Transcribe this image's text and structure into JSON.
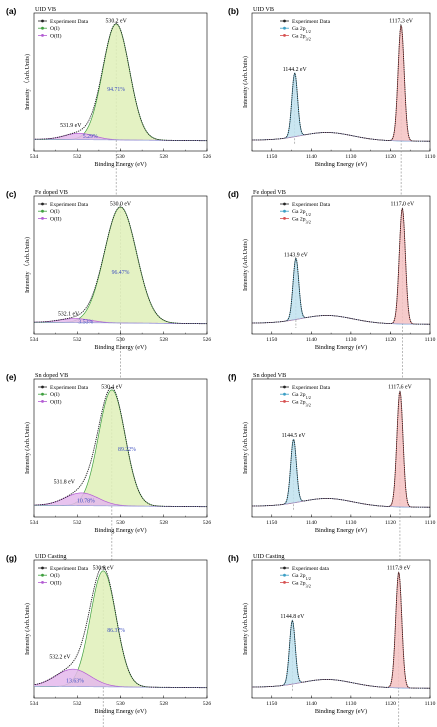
{
  "colors": {
    "data_line": "#222222",
    "o1_fill": "#dff0b8",
    "o1_line": "#3f9f3f",
    "o2_fill": "#e4b8ec",
    "o2_line": "#b35cd3",
    "ga_half_fill": "#bfe2ee",
    "ga_half_line": "#3c9fc5",
    "ga_32_fill": "#f5c2c2",
    "ga_32_line": "#d65050",
    "bg_line": "#8a9ad6",
    "pct_text": "#3b4dbf",
    "ref_line": "#8a8a8a"
  },
  "chart_data": [
    {
      "panel": "(a)",
      "type": "line",
      "region": "O 1s",
      "title": "UID VB",
      "xlabel": "Binding Energy (eV)",
      "ylabel": "Intensity （Arb.Units)",
      "xlim": [
        534,
        526
      ],
      "xticks": [
        "534",
        "532",
        "530",
        "528",
        "526"
      ],
      "legend": [
        "Experiment Data",
        "O(I)",
        "O(II)"
      ],
      "legend_position": "top-left",
      "peaks": [
        {
          "name": "O(I)",
          "center": 530.2,
          "height": 1.0,
          "fwhm": 1.45,
          "percent": "94.71%"
        },
        {
          "name": "O(II)",
          "center": 531.9,
          "height": 0.055,
          "fwhm": 1.6,
          "percent": "5.29%"
        }
      ],
      "annotations": [
        {
          "text": "530.2 eV",
          "x": 530.2,
          "y": 1.04
        },
        {
          "text": "531.9 eV",
          "x": 532.3,
          "y": 0.14
        },
        {
          "text": "94.71%",
          "x": 530.2,
          "y": 0.45,
          "style": "pct"
        },
        {
          "text": "5.29%",
          "x": 531.4,
          "y": 0.045,
          "style": "pct"
        }
      ]
    },
    {
      "panel": "(b)",
      "type": "line",
      "region": "Ga 2p",
      "title": "UID VB",
      "xlabel": "Binding Energy (eV)",
      "ylabel": "Intensity (Arb.Units)",
      "xlim": [
        1155,
        1110
      ],
      "xticks": [
        "1150",
        "1140",
        "1130",
        "1120",
        "1110"
      ],
      "legend": [
        "Experiment Data",
        "Ga 2p<sub>1/2</sub>",
        "Ga 2p<sub>3/2</sub>"
      ],
      "legend_position": "top-center",
      "peaks": [
        {
          "name": "Ga 2p1/2",
          "center": 1144.2,
          "height": 0.55,
          "fwhm": 1.7
        },
        {
          "name": "Ga 2p3/2",
          "center": 1117.3,
          "height": 1.0,
          "fwhm": 1.8
        }
      ],
      "annotations": [
        {
          "text": "1117.3 eV",
          "x": 1117.3,
          "y": 1.04
        },
        {
          "text": "1144.2 eV",
          "x": 1144.2,
          "y": 0.62
        }
      ]
    },
    {
      "panel": "(c)",
      "type": "line",
      "region": "O 1s",
      "title": "Fe doped VB",
      "xlabel": "Binding Energy (eV)",
      "ylabel": "Intensity （Arb.Units)",
      "xlim": [
        534,
        526
      ],
      "xticks": [
        "534",
        "532",
        "530",
        "528",
        "526"
      ],
      "legend": [
        "Experiment Data",
        "O(I)",
        "O(II)"
      ],
      "legend_position": "top-left",
      "peaks": [
        {
          "name": "O(I)",
          "center": 530.0,
          "height": 1.0,
          "fwhm": 1.75,
          "percent": "96.47%"
        },
        {
          "name": "O(II)",
          "center": 532.1,
          "height": 0.035,
          "fwhm": 1.7,
          "percent": "3.53%"
        }
      ],
      "annotations": [
        {
          "text": "530.0 eV",
          "x": 530.0,
          "y": 1.04
        },
        {
          "text": "532.1 eV",
          "x": 532.4,
          "y": 0.09
        },
        {
          "text": "96.47%",
          "x": 530.0,
          "y": 0.45,
          "style": "pct"
        },
        {
          "text": "3.53%",
          "x": 531.6,
          "y": 0.02,
          "style": "pct"
        }
      ]
    },
    {
      "panel": "(d)",
      "type": "line",
      "region": "Ga 2p",
      "title": "Fe doped VB",
      "xlabel": "Binding Energy (eV)",
      "ylabel": "Intensity (Arb.Units)",
      "xlim": [
        1155,
        1110
      ],
      "xticks": [
        "1150",
        "1140",
        "1130",
        "1120",
        "1110"
      ],
      "legend": [
        "Experiment Data",
        "Ga 2p<sub>1/2</sub>",
        "Ga 2p<sub>3/2</sub>"
      ],
      "legend_position": "top-center",
      "peaks": [
        {
          "name": "Ga 2p1/2",
          "center": 1143.9,
          "height": 0.53,
          "fwhm": 1.7
        },
        {
          "name": "Ga 2p3/2",
          "center": 1117.0,
          "height": 1.0,
          "fwhm": 1.8
        }
      ],
      "annotations": [
        {
          "text": "1117.0 eV",
          "x": 1117.0,
          "y": 1.04
        },
        {
          "text": "1143.9 eV",
          "x": 1143.9,
          "y": 0.6
        }
      ]
    },
    {
      "panel": "(e)",
      "type": "line",
      "region": "O 1s",
      "title": "Sn doped VB",
      "xlabel": "Binding Energy (eV)",
      "ylabel": "Intensity (Arb.Units)",
      "xlim": [
        534,
        526
      ],
      "xticks": [
        "534",
        "532",
        "530",
        "528",
        "526"
      ],
      "legend": [
        "Experiment Data",
        "O(I)",
        "O(II)"
      ],
      "legend_position": "top-left",
      "peaks": [
        {
          "name": "O(I)",
          "center": 530.4,
          "height": 1.0,
          "fwhm": 1.45,
          "percent": "89.22%"
        },
        {
          "name": "O(II)",
          "center": 531.8,
          "height": 0.11,
          "fwhm": 1.8,
          "percent": "10.78%"
        }
      ],
      "annotations": [
        {
          "text": "530.4 eV",
          "x": 530.4,
          "y": 1.04
        },
        {
          "text": "531.8 eV",
          "x": 532.6,
          "y": 0.22
        },
        {
          "text": "89.22%",
          "x": 529.7,
          "y": 0.5,
          "style": "pct"
        },
        {
          "text": "10.78%",
          "x": 531.6,
          "y": 0.055,
          "style": "pct"
        }
      ]
    },
    {
      "panel": "(f)",
      "type": "line",
      "region": "Ga 2p",
      "title": "Sn doped VB",
      "xlabel": "Binding Energy (eV)",
      "ylabel": "Intensity (Arb.Units)",
      "xlim": [
        1155,
        1110
      ],
      "xticks": [
        "1150",
        "1140",
        "1130",
        "1120",
        "1110"
      ],
      "legend": [
        "Experiment Data",
        "Ga 2p<sub>1/2</sub>",
        "Ga 2p<sub>3/2</sub>"
      ],
      "legend_position": "top-center",
      "peaks": [
        {
          "name": "Ga 2p1/2",
          "center": 1144.5,
          "height": 0.55,
          "fwhm": 1.7
        },
        {
          "name": "Ga 2p3/2",
          "center": 1117.6,
          "height": 1.0,
          "fwhm": 1.8
        }
      ],
      "annotations": [
        {
          "text": "1117.6 eV",
          "x": 1117.6,
          "y": 1.04
        },
        {
          "text": "1144.5 eV",
          "x": 1144.5,
          "y": 0.62
        }
      ]
    },
    {
      "panel": "(g)",
      "type": "line",
      "region": "O 1s",
      "title": "UID Casting",
      "xlabel": "Binding Energy (eV)",
      "ylabel": "Intensity (Arb.Units)",
      "xlim": [
        534,
        526
      ],
      "xticks": [
        "534",
        "532",
        "530",
        "528",
        "526"
      ],
      "legend": [
        "Experiment Data",
        "O(I)",
        "O(II)"
      ],
      "legend_position": "top-left",
      "peaks": [
        {
          "name": "O(I)",
          "center": 530.8,
          "height": 1.0,
          "fwhm": 1.4,
          "percent": "86.37%"
        },
        {
          "name": "O(II)",
          "center": 532.2,
          "height": 0.15,
          "fwhm": 1.9,
          "percent": "13.63%"
        }
      ],
      "annotations": [
        {
          "text": "530.8 eV",
          "x": 530.8,
          "y": 1.04
        },
        {
          "text": "532.2 eV",
          "x": 532.8,
          "y": 0.27
        },
        {
          "text": "86.37%",
          "x": 530.2,
          "y": 0.5,
          "style": "pct"
        },
        {
          "text": "13.63%",
          "x": 532.1,
          "y": 0.065,
          "style": "pct"
        }
      ]
    },
    {
      "panel": "(h)",
      "type": "line",
      "region": "Ga 2p",
      "title": "UID Casting",
      "xlabel": "Binding Energy (eV)",
      "ylabel": "Intensity (Arb.Units)",
      "xlim": [
        1155,
        1110
      ],
      "xticks": [
        "1150",
        "1140",
        "1130",
        "1120",
        "1110"
      ],
      "legend": [
        "Experiment data",
        "Ga 2p<sub>1/2</sub>",
        "Ga 2p<sub>3/2</sub>"
      ],
      "legend_position": "top-center",
      "peaks": [
        {
          "name": "Ga 2p1/2",
          "center": 1144.8,
          "height": 0.55,
          "fwhm": 1.7
        },
        {
          "name": "Ga 2p3/2",
          "center": 1117.9,
          "height": 1.0,
          "fwhm": 1.8
        }
      ],
      "annotations": [
        {
          "text": "1117.9 eV",
          "x": 1117.9,
          "y": 1.04
        },
        {
          "text": "1144.8 eV",
          "x": 1144.8,
          "y": 0.62
        }
      ]
    }
  ]
}
